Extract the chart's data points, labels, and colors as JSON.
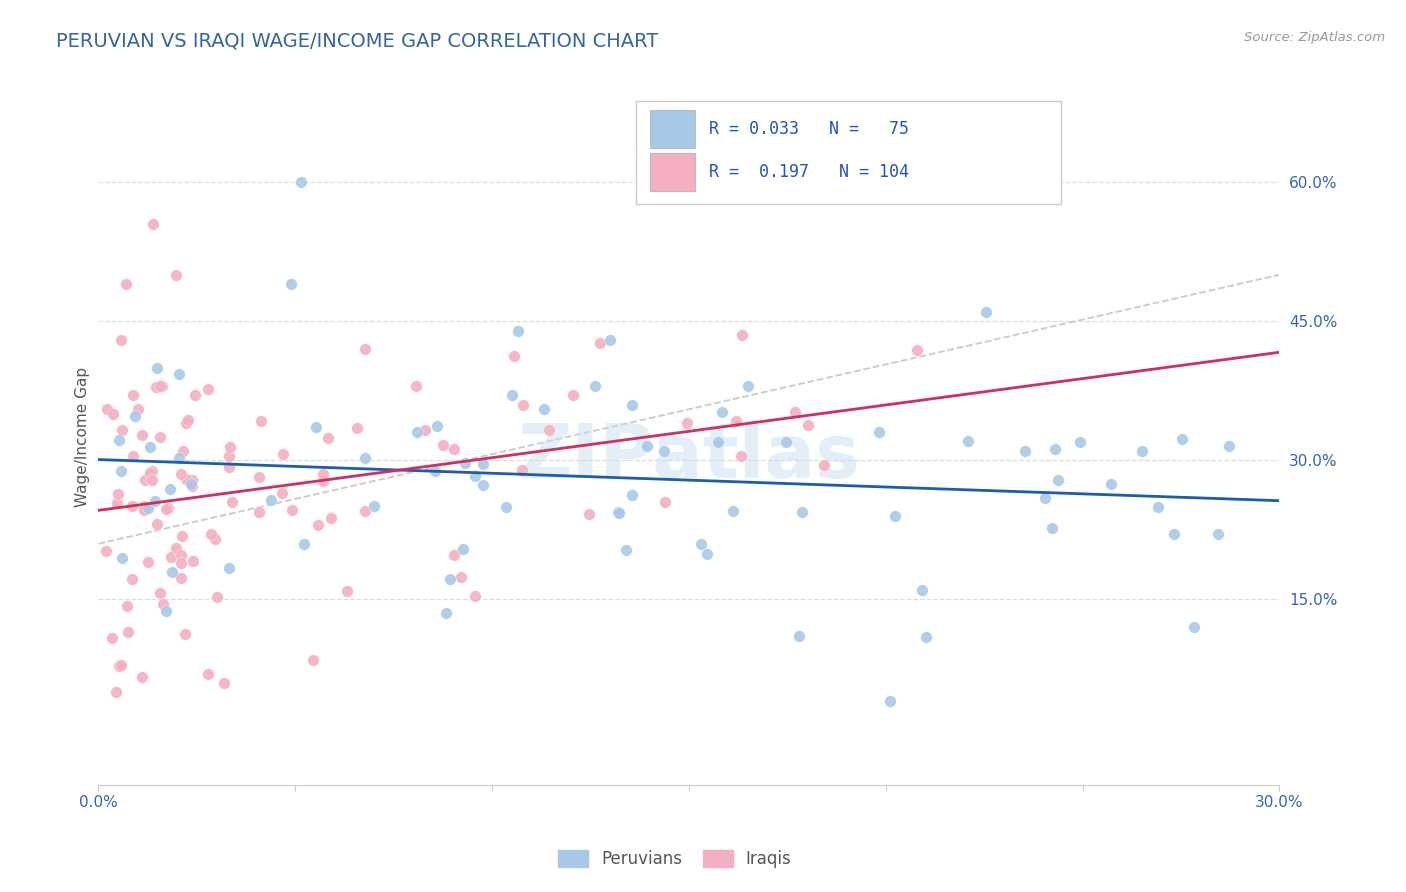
{
  "title": "PERUVIAN VS IRAQI WAGE/INCOME GAP CORRELATION CHART",
  "source_text": "Source: ZipAtlas.com",
  "ylabel": "Wage/Income Gap",
  "xlim": [
    0.0,
    0.3
  ],
  "ylim": [
    -0.05,
    0.7
  ],
  "xtick_vals": [
    0.0,
    0.05,
    0.1,
    0.15,
    0.2,
    0.25,
    0.3
  ],
  "xtick_labels": [
    "0.0%",
    "",
    "",
    "",
    "",
    "",
    "30.0%"
  ],
  "yticks_right": [
    0.15,
    0.3,
    0.45,
    0.6
  ],
  "ytick_labels_right": [
    "15.0%",
    "30.0%",
    "45.0%",
    "60.0%"
  ],
  "blue_scatter_color": "#a8c8e8",
  "pink_scatter_color": "#f4b0c0",
  "blue_line_color": "#1a5fa8",
  "pink_line_color": "#d03060",
  "gray_line_color": "#c0c0c0",
  "r_blue": 0.033,
  "n_blue": 75,
  "r_pink": 0.197,
  "n_pink": 104,
  "watermark": "ZIPatlas",
  "background_color": "#ffffff",
  "legend_label_peruvians": "Peruvians",
  "legend_label_iraqis": "Iraqis",
  "title_color": "#336699",
  "source_color": "#999999",
  "axis_tick_color": "#3366aa",
  "legend_text_color": "#2255bb",
  "grid_color": "#dddddd"
}
